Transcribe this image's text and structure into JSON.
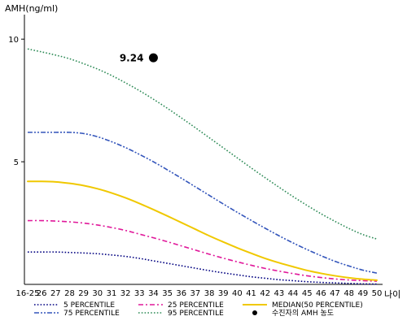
{
  "chart_data": {
    "type": "line",
    "ylabel": "AMH(ng/ml)",
    "xlabel": "나이",
    "categories": [
      "16-25",
      "26",
      "27",
      "28",
      "29",
      "30",
      "31",
      "32",
      "33",
      "34",
      "35",
      "36",
      "37",
      "38",
      "39",
      "40",
      "41",
      "42",
      "43",
      "44",
      "45",
      "46",
      "47",
      "48",
      "49",
      "50"
    ],
    "ylim": [
      0,
      11
    ],
    "yticks": [
      5,
      10
    ],
    "grid": false,
    "series": [
      {
        "name": "5 PERCENTILE",
        "color": "#000080",
        "style": "dotted",
        "values": [
          1.32,
          1.32,
          1.32,
          1.3,
          1.28,
          1.25,
          1.2,
          1.14,
          1.06,
          0.96,
          0.86,
          0.76,
          0.66,
          0.56,
          0.47,
          0.39,
          0.31,
          0.25,
          0.19,
          0.15,
          0.11,
          0.08,
          0.06,
          0.04,
          0.02,
          0.01
        ]
      },
      {
        "name": "25 PERCENTILE",
        "color": "#e0189a",
        "style": "dash-dot",
        "values": [
          2.6,
          2.6,
          2.58,
          2.55,
          2.5,
          2.42,
          2.32,
          2.2,
          2.05,
          1.9,
          1.74,
          1.57,
          1.4,
          1.23,
          1.07,
          0.92,
          0.78,
          0.65,
          0.54,
          0.44,
          0.35,
          0.28,
          0.22,
          0.18,
          0.15,
          0.13
        ]
      },
      {
        "name": "MEDIAN(50 PERCENTILE)",
        "color": "#f0c800",
        "style": "solid",
        "values": [
          4.2,
          4.2,
          4.18,
          4.12,
          4.03,
          3.9,
          3.73,
          3.53,
          3.3,
          3.05,
          2.79,
          2.52,
          2.25,
          1.98,
          1.73,
          1.49,
          1.27,
          1.06,
          0.88,
          0.72,
          0.57,
          0.45,
          0.35,
          0.27,
          0.21,
          0.17
        ]
      },
      {
        "name": "75 PERCENTILE",
        "color": "#3355bb",
        "style": "dash-dot-dot",
        "values": [
          6.2,
          6.2,
          6.2,
          6.2,
          6.15,
          6.02,
          5.82,
          5.58,
          5.3,
          5.0,
          4.67,
          4.33,
          3.98,
          3.63,
          3.28,
          2.94,
          2.61,
          2.29,
          1.98,
          1.69,
          1.42,
          1.17,
          0.94,
          0.75,
          0.58,
          0.46
        ]
      },
      {
        "name": "95 PERCENTILE",
        "color": "#2e8b57",
        "style": "dotted",
        "values": [
          9.6,
          9.48,
          9.35,
          9.2,
          9.0,
          8.78,
          8.52,
          8.22,
          7.9,
          7.55,
          7.18,
          6.79,
          6.39,
          5.98,
          5.57,
          5.16,
          4.75,
          4.35,
          3.96,
          3.58,
          3.22,
          2.88,
          2.57,
          2.28,
          2.03,
          1.85
        ]
      }
    ],
    "highlight": {
      "name": "수진자의 AMH 농도",
      "category": "34",
      "value": 9.24,
      "label": "9.24",
      "color": "#000000"
    },
    "legend": {
      "position": "bottom",
      "columns": 3,
      "order": [
        "5 PERCENTILE",
        "25 PERCENTILE",
        "MEDIAN(50 PERCENTILE)",
        "75 PERCENTILE",
        "95 PERCENTILE",
        "수진자의 AMH 농도"
      ]
    }
  }
}
